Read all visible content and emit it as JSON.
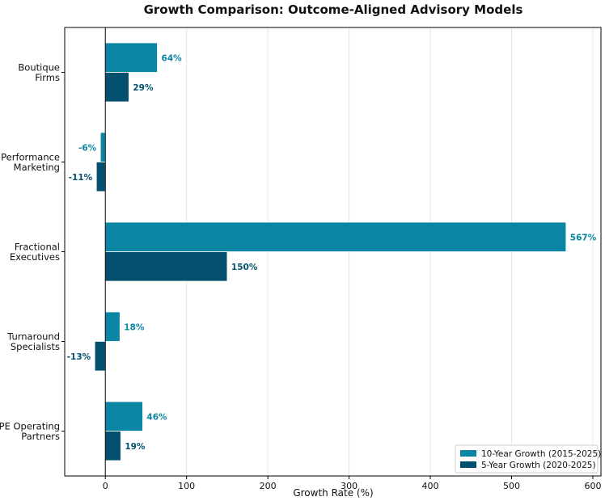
{
  "chart_data": {
    "type": "bar",
    "orientation": "horizontal",
    "title": "Growth Comparison: Outcome-Aligned Advisory Models",
    "xlabel": "Growth Rate (%)",
    "ylabel": "",
    "xlim": [
      -50,
      610
    ],
    "xticks": [
      0,
      100,
      200,
      300,
      400,
      500,
      600
    ],
    "grid": "vertical",
    "legend_position": "bottom-right",
    "categories": [
      [
        "Boutique",
        "Firms"
      ],
      [
        "Performance",
        "Marketing"
      ],
      [
        "Fractional",
        "Executives"
      ],
      [
        "Turnaround",
        "Specialists"
      ],
      [
        "PE Operating",
        "Partners"
      ]
    ],
    "series": [
      {
        "name": "10-Year Growth (2015-2025)",
        "color": "#0a85a3",
        "values": [
          64,
          -6,
          567,
          18,
          46
        ],
        "labels": [
          "64%",
          "-6%",
          "567%",
          "18%",
          "46%"
        ]
      },
      {
        "name": "5-Year Growth (2020-2025)",
        "color": "#034f6e",
        "values": [
          29,
          -11,
          150,
          -13,
          19
        ],
        "labels": [
          "29%",
          "-11%",
          "150%",
          "-13%",
          "19%"
        ]
      }
    ]
  }
}
